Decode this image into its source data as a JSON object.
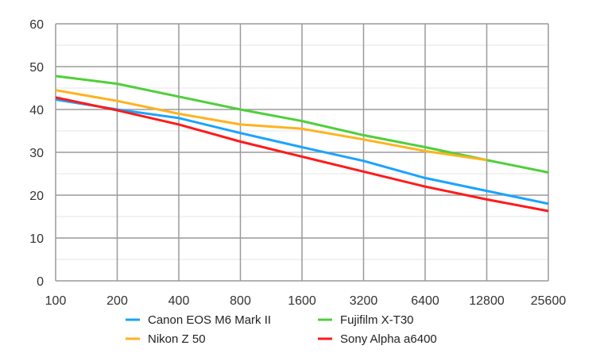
{
  "chart_data": {
    "type": "line",
    "title": "",
    "xlabel": "",
    "ylabel": "",
    "x": [
      "100",
      "200",
      "400",
      "800",
      "1600",
      "3200",
      "6400",
      "12800",
      "25600"
    ],
    "ylim": [
      0,
      60
    ],
    "yticks": [
      "0",
      "10",
      "20",
      "30",
      "40",
      "50",
      "60"
    ],
    "grid": true,
    "legend_position": "bottom",
    "series": [
      {
        "name": "Canon EOS M6 Mark II",
        "color": "#1aa3ff",
        "values": [
          42.3,
          40,
          38,
          34.5,
          31.2,
          28,
          24,
          21,
          18
        ]
      },
      {
        "name": "Fujifilm X-T30",
        "color": "#4fcf3a",
        "values": [
          47.8,
          46,
          43,
          40,
          37.3,
          34,
          31.2,
          28.2,
          25.3
        ]
      },
      {
        "name": "Nikon Z 50",
        "color": "#ffb21f",
        "values": [
          44.5,
          42,
          39,
          36.5,
          35.5,
          33,
          30.3,
          28.2,
          null
        ]
      },
      {
        "name": "Sony Alpha a6400",
        "color": "#ff1a1a",
        "values": [
          42.8,
          39.8,
          36.5,
          32.5,
          29,
          25.5,
          22,
          19,
          16.3
        ]
      }
    ]
  }
}
